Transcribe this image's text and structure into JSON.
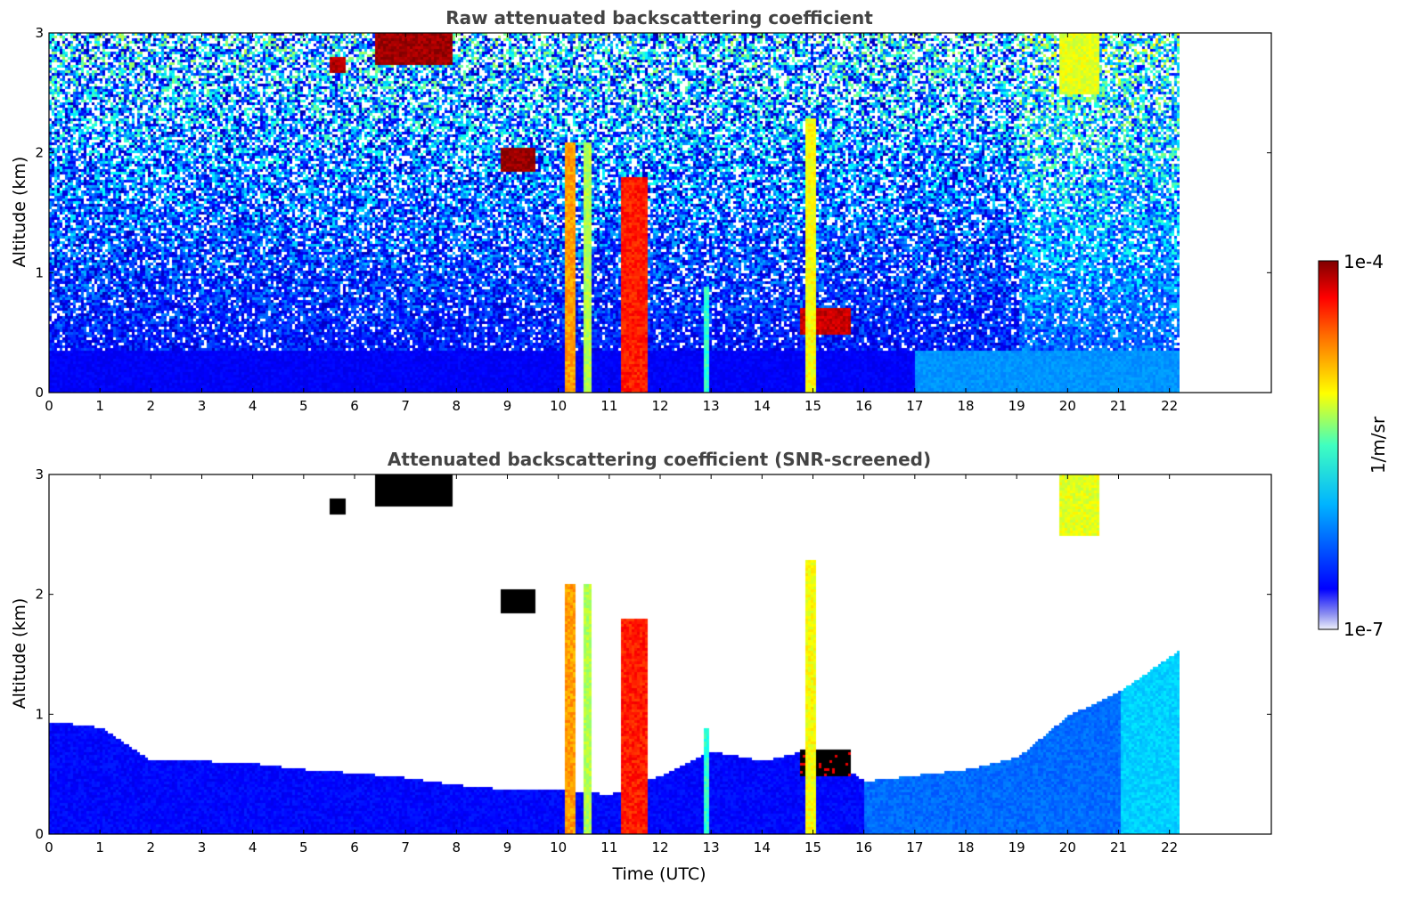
{
  "chart_data": [
    {
      "type": "heatmap",
      "title": "Raw attenuated backscattering coefficient",
      "xlabel": "",
      "ylabel": "Altitude (km)",
      "xlim": [
        0,
        24
      ],
      "ylim": [
        0,
        3
      ],
      "x_ticks": [
        "0",
        "1",
        "2",
        "3",
        "4",
        "5",
        "6",
        "7",
        "8",
        "9",
        "10",
        "11",
        "12",
        "13",
        "14",
        "15",
        "16",
        "17",
        "18",
        "19",
        "20",
        "21",
        "22"
      ],
      "y_ticks": [
        "0",
        "1",
        "2",
        "3"
      ],
      "data_end_time": 22.2,
      "screened": false,
      "features": [
        {
          "kind": "cloud",
          "t0": 10.1,
          "t1": 10.3,
          "z0": 0.0,
          "z1": 2.1,
          "level": 0.72
        },
        {
          "kind": "cloud",
          "t0": 10.45,
          "t1": 10.65,
          "z0": 0.0,
          "z1": 2.1,
          "level": 0.55
        },
        {
          "kind": "cloud",
          "t0": 11.2,
          "t1": 11.75,
          "z0": 0.0,
          "z1": 1.8,
          "level": 0.85
        },
        {
          "kind": "cloud",
          "t0": 14.85,
          "t1": 15.05,
          "z0": 0.0,
          "z1": 2.3,
          "level": 0.62
        },
        {
          "kind": "cloud",
          "t0": 12.85,
          "t1": 12.95,
          "z0": 0.0,
          "z1": 0.9,
          "level": 0.42
        },
        {
          "kind": "cloud",
          "t0": 8.85,
          "t1": 9.55,
          "z0": 1.85,
          "z1": 2.05,
          "level": 0.98
        },
        {
          "kind": "cloud",
          "t0": 6.4,
          "t1": 7.9,
          "z0": 2.75,
          "z1": 3.0,
          "level": 0.97
        },
        {
          "kind": "cloud",
          "t0": 5.5,
          "t1": 5.8,
          "z0": 2.68,
          "z1": 2.8,
          "level": 0.95
        },
        {
          "kind": "cloud",
          "t0": 14.7,
          "t1": 15.7,
          "z0": 0.5,
          "z1": 0.72,
          "level": 0.93
        },
        {
          "kind": "cloud",
          "t0": 19.8,
          "t1": 20.6,
          "z0": 2.5,
          "z1": 3.0,
          "level": 0.6
        }
      ]
    },
    {
      "type": "heatmap",
      "title": "Attenuated backscattering coefficient (SNR-screened)",
      "xlabel": "Time (UTC)",
      "ylabel": "Altitude (km)",
      "xlim": [
        0,
        24
      ],
      "ylim": [
        0,
        3
      ],
      "x_ticks": [
        "0",
        "1",
        "2",
        "3",
        "4",
        "5",
        "6",
        "7",
        "8",
        "9",
        "10",
        "11",
        "12",
        "13",
        "14",
        "15",
        "16",
        "17",
        "18",
        "19",
        "20",
        "21",
        "22"
      ],
      "y_ticks": [
        "0",
        "1",
        "2",
        "3"
      ],
      "data_end_time": 22.2,
      "screened": true,
      "boundary_layer_top_km": [
        [
          0,
          0.95
        ],
        [
          1,
          0.9
        ],
        [
          2,
          0.62
        ],
        [
          3,
          0.62
        ],
        [
          4,
          0.6
        ],
        [
          5,
          0.55
        ],
        [
          6,
          0.52
        ],
        [
          7,
          0.48
        ],
        [
          8,
          0.42
        ],
        [
          9,
          0.38
        ],
        [
          10,
          0.38
        ],
        [
          11,
          0.34
        ],
        [
          12,
          0.5
        ],
        [
          13,
          0.7
        ],
        [
          14,
          0.62
        ],
        [
          15,
          0.72
        ],
        [
          16,
          0.45
        ],
        [
          17,
          0.5
        ],
        [
          18,
          0.55
        ],
        [
          19,
          0.65
        ],
        [
          20,
          1.0
        ],
        [
          21,
          1.2
        ],
        [
          22.2,
          1.55
        ]
      ]
    }
  ],
  "colorbar": {
    "label": "1/m/sr",
    "max_label": "1e-4",
    "min_label": "1e-7",
    "colormap": "jet",
    "scale": "log",
    "range": [
      1e-07,
      0.0001
    ]
  }
}
